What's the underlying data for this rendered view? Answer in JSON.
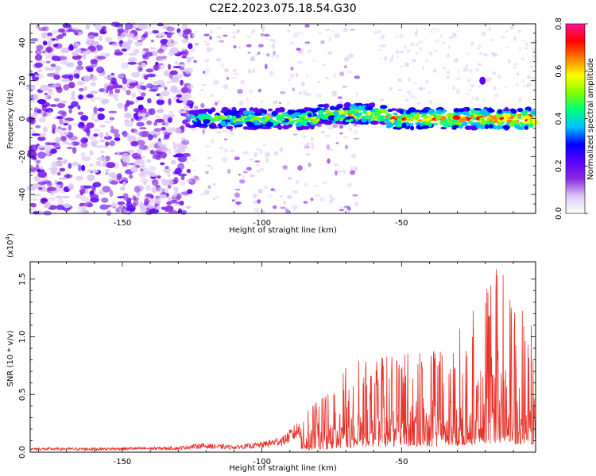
{
  "title": "C2E2.2023.075.18.54.G30",
  "chart_data": [
    {
      "type": "heatmap",
      "title": "C2E2.2023.075.18.54.G30",
      "xlabel": "Height of straight line (km)",
      "ylabel": "Frequency (Hz)",
      "xlim": [
        -183,
        -2
      ],
      "ylim": [
        -50,
        50
      ],
      "x_ticks": [
        -150,
        -100,
        -50
      ],
      "y_ticks": [
        40,
        20,
        0,
        -20,
        -40
      ],
      "colorbar": {
        "label": "Normalized spectral amplitude",
        "range": [
          0.0,
          0.8
        ],
        "ticks": [
          "0.0",
          "0.2",
          "0.4",
          "0.6",
          "0.8"
        ],
        "colors": [
          "#ffffff",
          "#dcc8f5",
          "#8a2be2",
          "#5a00ff",
          "#0000ff",
          "#00bfff",
          "#00ff80",
          "#80ff00",
          "#ffff00",
          "#ff8000",
          "#ff0000",
          "#ff1493"
        ]
      },
      "features": {
        "noise_region_x": [
          -183,
          -125
        ],
        "signal_band_x": [
          -125,
          -2
        ],
        "signal_band_center_hz": 0,
        "signal_band_halfwidth_hz": 5,
        "isolated_blob": {
          "x": -21,
          "y": 20
        }
      }
    },
    {
      "type": "line",
      "xlabel": "Height of straight line (km)",
      "ylabel": "SNR (10 * v/v)",
      "y_scale_label": "(x10",
      "y_scale_exp": "4",
      "y_scale_close": ")",
      "xlim": [
        -183,
        -2
      ],
      "ylim": [
        0,
        1.65
      ],
      "x_ticks": [
        -150,
        -100,
        -50
      ],
      "y_ticks": [
        "0.0",
        "0.5",
        "1.0",
        "1.5"
      ],
      "series": [
        {
          "color": "#e8322a",
          "envelope_x": [
            -183,
            -160,
            -130,
            -122,
            -110,
            -100,
            -92,
            -86,
            -80,
            -75,
            -70,
            -65,
            -60,
            -55,
            -50,
            -45,
            -40,
            -35,
            -30,
            -25,
            -20,
            -15,
            -10,
            -5,
            -2
          ],
          "envelope_y": [
            0.04,
            0.04,
            0.05,
            0.08,
            0.06,
            0.09,
            0.15,
            0.3,
            0.45,
            0.55,
            0.75,
            0.85,
            0.8,
            0.85,
            0.85,
            0.9,
            0.95,
            0.85,
            1.05,
            1.2,
            1.4,
            1.65,
            1.3,
            1.2,
            1.0
          ]
        }
      ]
    }
  ]
}
